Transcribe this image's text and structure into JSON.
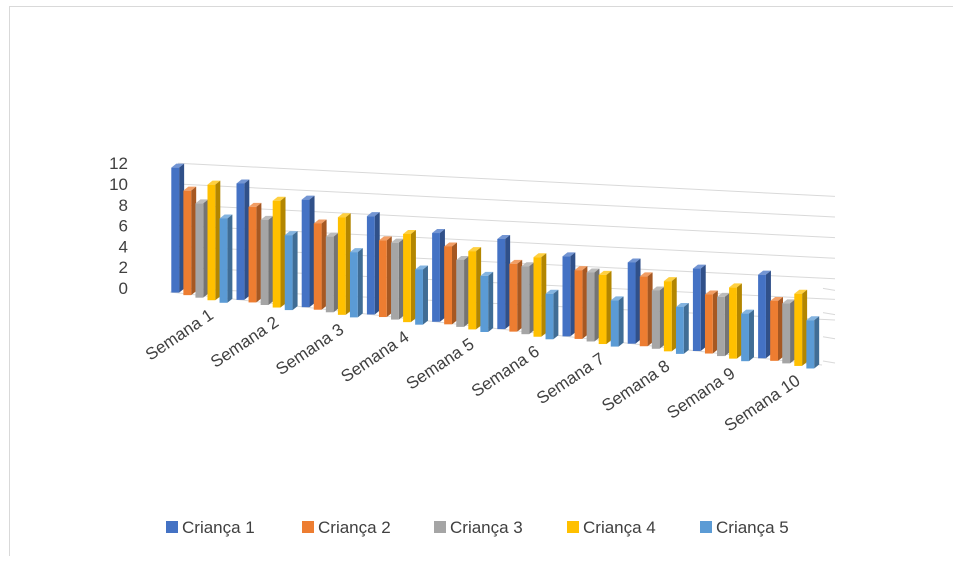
{
  "page": {
    "clipped_caption": ""
  },
  "chart_data": {
    "type": "bar",
    "style": "3d-clustered-column",
    "categories": [
      "Semana 1",
      "Semana 2",
      "Semana 3",
      "Semana 4",
      "Semana 5",
      "Semana 6",
      "Semana 7",
      "Semana 8",
      "Semana 9",
      "Semana 10"
    ],
    "series": [
      {
        "name": "Criança 1",
        "color": "#4472c4",
        "values": [
          12,
          11,
          10,
          9,
          8,
          8,
          7,
          7,
          7,
          7
        ]
      },
      {
        "name": "Criança 2",
        "color": "#ed7d31",
        "values": [
          10,
          9,
          8,
          7,
          7,
          6,
          6,
          6,
          5,
          5
        ]
      },
      {
        "name": "Criança 3",
        "color": "#a5a5a5",
        "values": [
          9,
          8,
          7,
          7,
          6,
          6,
          6,
          5,
          5,
          5
        ]
      },
      {
        "name": "Criança 4",
        "color": "#ffc000",
        "values": [
          11,
          10,
          9,
          8,
          7,
          7,
          6,
          6,
          6,
          6
        ]
      },
      {
        "name": "Criança 5",
        "color": "#5b9bd5",
        "values": [
          8,
          7,
          6,
          5,
          5,
          4,
          4,
          4,
          4,
          4
        ]
      }
    ],
    "ylim": [
      0,
      12
    ],
    "yticks": [
      "0",
      "2",
      "4",
      "6",
      "8",
      "10",
      "12"
    ],
    "grid": true,
    "legend_position": "bottom"
  }
}
